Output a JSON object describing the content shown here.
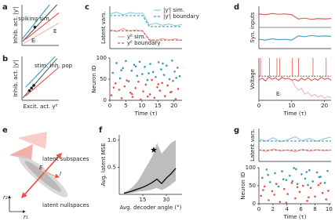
{
  "chart_data": [
    {
      "type": "line",
      "label": "a",
      "ylabel": "Inhib. act. |yᴵ|",
      "xlim": [
        0,
        1
      ],
      "ylim": [
        0,
        1
      ],
      "annotations": [
        "spiking sim.",
        "E",
        "Eᵢ"
      ],
      "series": [
        {
          "color": "#f4b6b0",
          "x": [
            0.05,
            1
          ],
          "values": [
            0.05,
            0.55
          ]
        },
        {
          "color": "#555555",
          "x": [
            0.02,
            0.95
          ],
          "values": [
            0.1,
            1
          ]
        },
        {
          "color": "#3a9ab7",
          "x": [
            0,
            0.75
          ],
          "values": [
            0.15,
            1
          ]
        },
        {
          "color": "#e8524a",
          "x": [
            0.1,
            1
          ],
          "values": [
            0.15,
            0.8
          ]
        },
        {
          "color": "#222222",
          "marker": "dot",
          "x": [
            0.35
          ],
          "values": [
            0.45
          ]
        }
      ]
    },
    {
      "type": "line",
      "label": "b",
      "ylabel": "Inhib. act. |yᴵ|",
      "xlabel": "Excit. act. yᴱ",
      "xlim": [
        0,
        1
      ],
      "ylim": [
        0,
        1
      ],
      "annotations": [
        "stim. inh. pop"
      ],
      "series": [
        {
          "color": "#555555",
          "x": [
            0.02,
            0.95
          ],
          "values": [
            0.05,
            0.95
          ]
        },
        {
          "color": "#3a9ab7",
          "x": [
            0.1,
            0.9
          ],
          "values": [
            0.3,
            1
          ]
        },
        {
          "color": "#e8524a",
          "x": [
            0.1,
            1
          ],
          "values": [
            0.1,
            0.75
          ]
        },
        {
          "color": "#222222",
          "marker": "dot",
          "x": [
            0.2,
            0.26,
            0.32
          ],
          "values": [
            0.22,
            0.28,
            0.34
          ]
        }
      ]
    },
    {
      "type": "line",
      "label": "c",
      "ylabel": "Latent vars.",
      "legend": true,
      "x": [
        0,
        2,
        4,
        6,
        8,
        10,
        12,
        14,
        16,
        18,
        20,
        22
      ],
      "xlim": [
        0,
        22
      ],
      "ylim": [
        0,
        1
      ],
      "series": [
        {
          "name": "|yᴵ| sim.",
          "color": "#8ecae0",
          "values": [
            0.82,
            0.86,
            0.8,
            0.85,
            0.83,
            0.84,
            0.56,
            0.6,
            0.55,
            0.58,
            0.54,
            0.57
          ]
        },
        {
          "name": "|yᴵ| boundary",
          "color": "#3a9ab7",
          "dash": true,
          "values": [
            0.78,
            0.78,
            0.78,
            0.78,
            0.78,
            0.78,
            0.52,
            0.52,
            0.52,
            0.52,
            0.52,
            0.52
          ]
        },
        {
          "name": "yᴱ sim.",
          "color": "#f0a09a",
          "values": [
            0.45,
            0.4,
            0.47,
            0.42,
            0.44,
            0.41,
            0.22,
            0.18,
            0.24,
            0.2,
            0.23,
            0.19
          ]
        },
        {
          "name": "yᴱ boundary",
          "color": "#e8524a",
          "dash": true,
          "values": [
            0.42,
            0.42,
            0.42,
            0.42,
            0.42,
            0.42,
            0.2,
            0.2,
            0.2,
            0.2,
            0.2,
            0.2
          ]
        }
      ]
    },
    {
      "type": "scatter",
      "ylabel": "Neuron ID",
      "xlabel": "Time (τ)",
      "xlim": [
        0,
        22.5
      ],
      "ylim": [
        0,
        100
      ],
      "xticks": [
        0,
        5,
        10,
        15,
        20
      ],
      "yticks": [
        0,
        50,
        100
      ],
      "series": [
        {
          "color": "#e8524a",
          "x": [
            0.5,
            1.8,
            2.9,
            3.7,
            4.6,
            5.3,
            6.4,
            7.1,
            8.0,
            8.9,
            9.6,
            10.4,
            11.2,
            12.5,
            13.1,
            13.9,
            14.8,
            15.6,
            16.3,
            17.2,
            18.0,
            18.9,
            19.7,
            20.5,
            21.3,
            1.2,
            6.9,
            11.8,
            15.1,
            19.2
          ],
          "values": [
            12,
            40,
            25,
            5,
            33,
            47,
            18,
            8,
            29,
            44,
            2,
            21,
            37,
            14,
            48,
            6,
            31,
            23,
            41,
            10,
            35,
            19,
            46,
            3,
            27,
            30,
            15,
            9,
            38,
            20
          ]
        },
        {
          "color": "#3a9ab7",
          "x": [
            0.9,
            2.1,
            3.2,
            4.1,
            5.0,
            5.9,
            6.8,
            7.6,
            8.5,
            9.3,
            10.1,
            10.9,
            11.7,
            12.6,
            13.5,
            14.3,
            15.2,
            16.0,
            16.9,
            17.7,
            18.6,
            19.4,
            20.2,
            21.1,
            21.8,
            3.6,
            8.1,
            12.1,
            16.5,
            20.7
          ],
          "values": [
            65,
            88,
            52,
            76,
            93,
            45,
            70,
            84,
            58,
            91,
            62,
            79,
            48,
            86,
            67,
            55,
            90,
            73,
            60,
            82,
            50,
            94,
            68,
            77,
            57,
            71,
            80,
            64,
            87,
            53
          ]
        }
      ]
    },
    {
      "type": "line",
      "label": "d",
      "ylabel": "Syn. inputs",
      "x": [
        0,
        2,
        4,
        6,
        8,
        10,
        12,
        14,
        16,
        18,
        20,
        22
      ],
      "xlim": [
        0,
        22
      ],
      "ylim": [
        0,
        1
      ],
      "series": [
        {
          "color": "#e8524a",
          "values": [
            0.82,
            0.8,
            0.83,
            0.81,
            0.82,
            0.8,
            0.7,
            0.72,
            0.69,
            0.71,
            0.7,
            0.71
          ]
        },
        {
          "color": "#888888",
          "values": [
            0.5,
            0.5,
            0.5,
            0.5,
            0.5,
            0.5,
            0.5,
            0.5,
            0.5,
            0.5,
            0.5,
            0.5
          ]
        },
        {
          "color": "#3a9ab7",
          "values": [
            0.22,
            0.2,
            0.23,
            0.21,
            0.22,
            0.2,
            0.3,
            0.28,
            0.31,
            0.29,
            0.3,
            0.29
          ]
        }
      ]
    },
    {
      "type": "line",
      "ylabel": "Voltage",
      "xlabel": "Time (τ)",
      "x": [
        0,
        1,
        2,
        3,
        4,
        5,
        6,
        7,
        8,
        9,
        10,
        11,
        12,
        13,
        14,
        15,
        16,
        17,
        18,
        19,
        20,
        21,
        22
      ],
      "xlim": [
        0,
        22
      ],
      "ylim": [
        0,
        1.05
      ],
      "xticks": [
        0,
        10,
        20
      ],
      "threshold": 0.6,
      "spike_times": [
        0.5,
        3.2,
        5.5,
        6.3,
        10.2,
        12.1,
        16.5,
        20.5
      ],
      "spike_color": "#e8524a",
      "annotations": [
        "Eᵢ"
      ],
      "series": [
        {
          "color": "#f4b6b0",
          "values": [
            null,
            null,
            null,
            null,
            null,
            null,
            null,
            null,
            null,
            null,
            0.5,
            0.35,
            0.25,
            0.3,
            0.15,
            0.2,
            0.1,
            0.15,
            0.08,
            0.12,
            0.05,
            0.1,
            0.06
          ]
        },
        {
          "color": "#e8524a",
          "values": [
            0.5,
            0.55,
            0.48,
            0.58,
            0.52,
            0.56,
            0.5,
            0.57,
            0.53,
            0.55,
            0.5,
            0.52,
            0.48,
            0.55,
            0.5,
            0.56,
            0.49,
            0.54,
            0.5,
            0.57,
            0.52,
            0.55,
            0.5
          ]
        }
      ]
    },
    {
      "type": "diagram",
      "label": "e",
      "labels": [
        "latent subspaces",
        "latent nullspaces",
        "E",
        "I",
        "r₂",
        "r₁"
      ]
    },
    {
      "type": "band",
      "label": "f",
      "ylabel": "Avg. latent MSE",
      "xlabel": "Avg. decoder angle (°)",
      "x": [
        3,
        6,
        9,
        12,
        15,
        18,
        21,
        24,
        27,
        30,
        33,
        36
      ],
      "xlim": [
        0,
        40
      ],
      "ylim": [
        0,
        1.1
      ],
      "xticks": [
        15,
        30
      ],
      "yticks": [
        0.5,
        {
          "value": 1,
          "label": "1.0"
        }
      ],
      "star": [
        22,
        0.82
      ],
      "series": [
        {
          "color": "#111111",
          "band_color": "#bdbdbd",
          "values": [
            0.02,
            0.04,
            0.07,
            0.1,
            0.13,
            0.17,
            0.22,
            0.28,
            0.2,
            0.3,
            0.38,
            0.48
          ],
          "lower": [
            0.01,
            0.02,
            0.03,
            0.05,
            0.06,
            0.07,
            0.09,
            0.12,
            0.08,
            0.12,
            0.18,
            0.25
          ],
          "upper": [
            0.03,
            0.08,
            0.15,
            0.25,
            0.4,
            0.55,
            0.7,
            0.95,
            0.75,
            0.85,
            0.95,
            1.0
          ]
        }
      ]
    },
    {
      "type": "line",
      "label": "g",
      "ylabel": "Latent vars.",
      "x": [
        0,
        1,
        2,
        3,
        4,
        5,
        6,
        7,
        8,
        9,
        10
      ],
      "xlim": [
        0,
        10
      ],
      "ylim": [
        0,
        1
      ],
      "series": [
        {
          "color": "#8ecae0",
          "values": [
            0.68,
            0.62,
            0.72,
            0.6,
            0.66,
            0.75,
            0.63,
            0.7,
            0.61,
            0.69,
            0.74
          ]
        },
        {
          "color": "#3a9ab7",
          "dash": true,
          "values": [
            0.62,
            0.62,
            0.62,
            0.62,
            0.62,
            0.62,
            0.62,
            0.62,
            0.62,
            0.62,
            0.62
          ]
        },
        {
          "color": "#f0a09a",
          "values": [
            0.36,
            0.3,
            0.38,
            0.32,
            0.35,
            0.29,
            0.37,
            0.31,
            0.36,
            0.33,
            0.34
          ]
        },
        {
          "color": "#e8524a",
          "dash": true,
          "values": [
            0.34,
            0.34,
            0.34,
            0.34,
            0.34,
            0.34,
            0.34,
            0.34,
            0.34,
            0.34,
            0.34
          ]
        }
      ]
    },
    {
      "type": "scatter",
      "ylabel": "Neuron ID",
      "xlabel": "Time (τ)",
      "xlim": [
        0,
        10.3
      ],
      "ylim": [
        0,
        100
      ],
      "xticks": [
        0,
        2,
        4,
        6,
        8,
        10
      ],
      "yticks": [
        0,
        50,
        100
      ],
      "series": [
        {
          "color": "#e8524a",
          "x": [
            0.3,
            0.8,
            1.4,
            1.9,
            2.5,
            3.0,
            3.6,
            4.1,
            4.7,
            5.2,
            5.8,
            6.3,
            6.9,
            7.4,
            8.0,
            8.5,
            9.1,
            9.6,
            0.6,
            2.2,
            3.9,
            5.5,
            7.1,
            8.8,
            9.9
          ],
          "values": [
            22,
            48,
            10,
            35,
            55,
            5,
            41,
            27,
            58,
            15,
            33,
            50,
            8,
            44,
            20,
            52,
            30,
            12,
            38,
            25,
            3,
            46,
            18,
            57,
            36
          ]
        },
        {
          "color": "#3a9ab7",
          "x": [
            0.5,
            1.1,
            1.6,
            2.3,
            2.8,
            3.3,
            3.9,
            4.4,
            5.0,
            5.5,
            6.1,
            6.6,
            7.2,
            7.7,
            8.3,
            8.8,
            9.4,
            9.8,
            1.3,
            3.5,
            5.3,
            7.0,
            8.6,
            4.8,
            6.8
          ],
          "values": [
            72,
            95,
            60,
            85,
            48,
            90,
            66,
            78,
            99,
            55,
            82,
            70,
            93,
            62,
            87,
            75,
            58,
            91,
            80,
            68,
            96,
            52,
            74,
            63,
            88
          ]
        }
      ]
    }
  ]
}
